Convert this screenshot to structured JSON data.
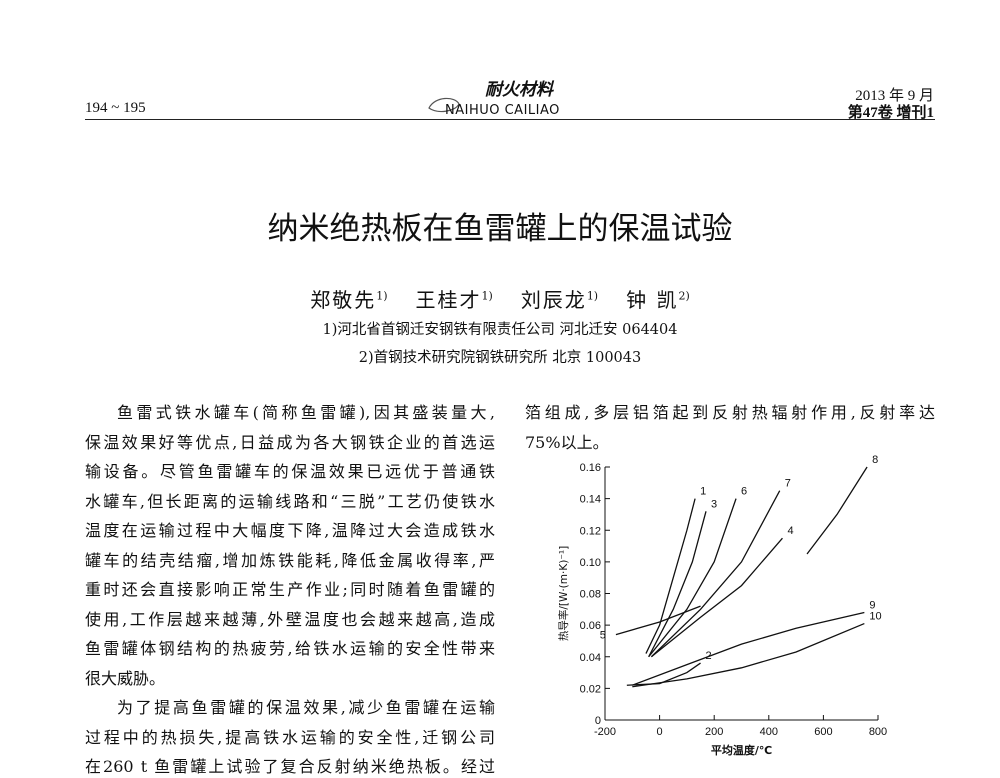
{
  "header": {
    "pages": "194 ~ 195",
    "logo_cn": "耐火材料",
    "logo_en": "NAIHUO CAILIAO",
    "date": "2013 年 9 月",
    "volume": "第47卷 增刊1"
  },
  "title": "纳米绝热板在鱼雷罐上的保温试验",
  "authors": [
    {
      "name": "郑敬先",
      "mark": "1)"
    },
    {
      "name": "王桂才",
      "mark": "1)"
    },
    {
      "name": "刘辰龙",
      "mark": "1)"
    },
    {
      "name": "钟 凯",
      "mark": "2)"
    }
  ],
  "affiliations": [
    "1)河北省首钢迁安钢铁有限责任公司 河北迁安 064404",
    "2)首钢技术研究院钢铁研究所 北京 100043"
  ],
  "left_column": [
    [
      "鱼雷式铁水罐车(简称鱼雷罐),因其盛装量大,",
      "保温效果好等优点,日益成为各大钢铁企业的首选运",
      "输设备。尽管鱼雷罐车的保温效果已远优于普通铁",
      "水罐车,但长距离的运输线路和“三脱”工艺仍使铁水",
      "温度在运输过程中大幅度下降,温降过大会造成铁水",
      "罐车的结壳结瘤,增加炼铁能耗,降低金属收得率,严",
      "重时还会直接影响正常生产作业;同时随着鱼雷罐的",
      "使用,工作层越来越薄,外壁温度也会越来越高,造成",
      "鱼雷罐体钢结构的热疲劳,给铁水运输的安全性带来",
      "很大威胁。"
    ],
    [
      "为了提高鱼雷罐的保温效果,减少鱼雷罐在运输",
      "过程中的热损失,提高铁水运输的安全性,迁钢公司",
      "在260 t 鱼雷罐上试验了复合反射纳米绝热板。经过"
    ]
  ],
  "right_column": [
    "箔组成,多层铝箔起到反射热辐射作用,反射率达",
    "75%以上。"
  ],
  "figure": {
    "chart_data": {
      "type": "line",
      "xlabel": "平均温度/℃",
      "ylabel": "热导率/[W·(m·K)⁻¹]",
      "color": "#111111",
      "xlim": [
        -200,
        800
      ],
      "ylim": [
        0,
        0.16
      ],
      "xticks": [
        -200,
        0,
        200,
        400,
        600,
        800
      ],
      "yticks": [
        0,
        0.02,
        0.04,
        0.06,
        0.08,
        {
          "value": 0.1,
          "label": "0.10"
        },
        0.12,
        0.14,
        0.16
      ],
      "series": [
        {
          "name": "1",
          "x": [
            -50,
            0,
            50,
            100,
            130
          ],
          "values": [
            0.042,
            0.06,
            0.09,
            0.12,
            0.14
          ]
        },
        {
          "name": "2",
          "x": [
            -120,
            0,
            100,
            150
          ],
          "values": [
            0.022,
            0.023,
            0.03,
            0.036
          ]
        },
        {
          "name": "3",
          "x": [
            -40,
            50,
            120,
            170
          ],
          "values": [
            0.04,
            0.07,
            0.1,
            0.132
          ]
        },
        {
          "name": "4",
          "x": [
            -30,
            150,
            300,
            450
          ],
          "values": [
            0.04,
            0.065,
            0.085,
            0.115
          ]
        },
        {
          "name": "5",
          "x": [
            -160,
            0,
            150
          ],
          "values": [
            0.054,
            0.062,
            0.072
          ]
        },
        {
          "name": "6",
          "x": [
            -40,
            100,
            200,
            280
          ],
          "values": [
            0.04,
            0.07,
            0.1,
            0.14
          ]
        },
        {
          "name": "7",
          "x": [
            -30,
            150,
            300,
            440
          ],
          "values": [
            0.04,
            0.07,
            0.1,
            0.145
          ]
        },
        {
          "name": "8",
          "x": [
            540,
            650,
            760
          ],
          "values": [
            0.105,
            0.13,
            0.16
          ]
        },
        {
          "name": "9",
          "x": [
            -100,
            100,
            300,
            500,
            750
          ],
          "values": [
            0.022,
            0.035,
            0.048,
            0.058,
            0.068
          ]
        },
        {
          "name": "10",
          "x": [
            -100,
            100,
            300,
            500,
            750
          ],
          "values": [
            0.021,
            0.026,
            0.033,
            0.043,
            0.061
          ]
        }
      ]
    }
  }
}
